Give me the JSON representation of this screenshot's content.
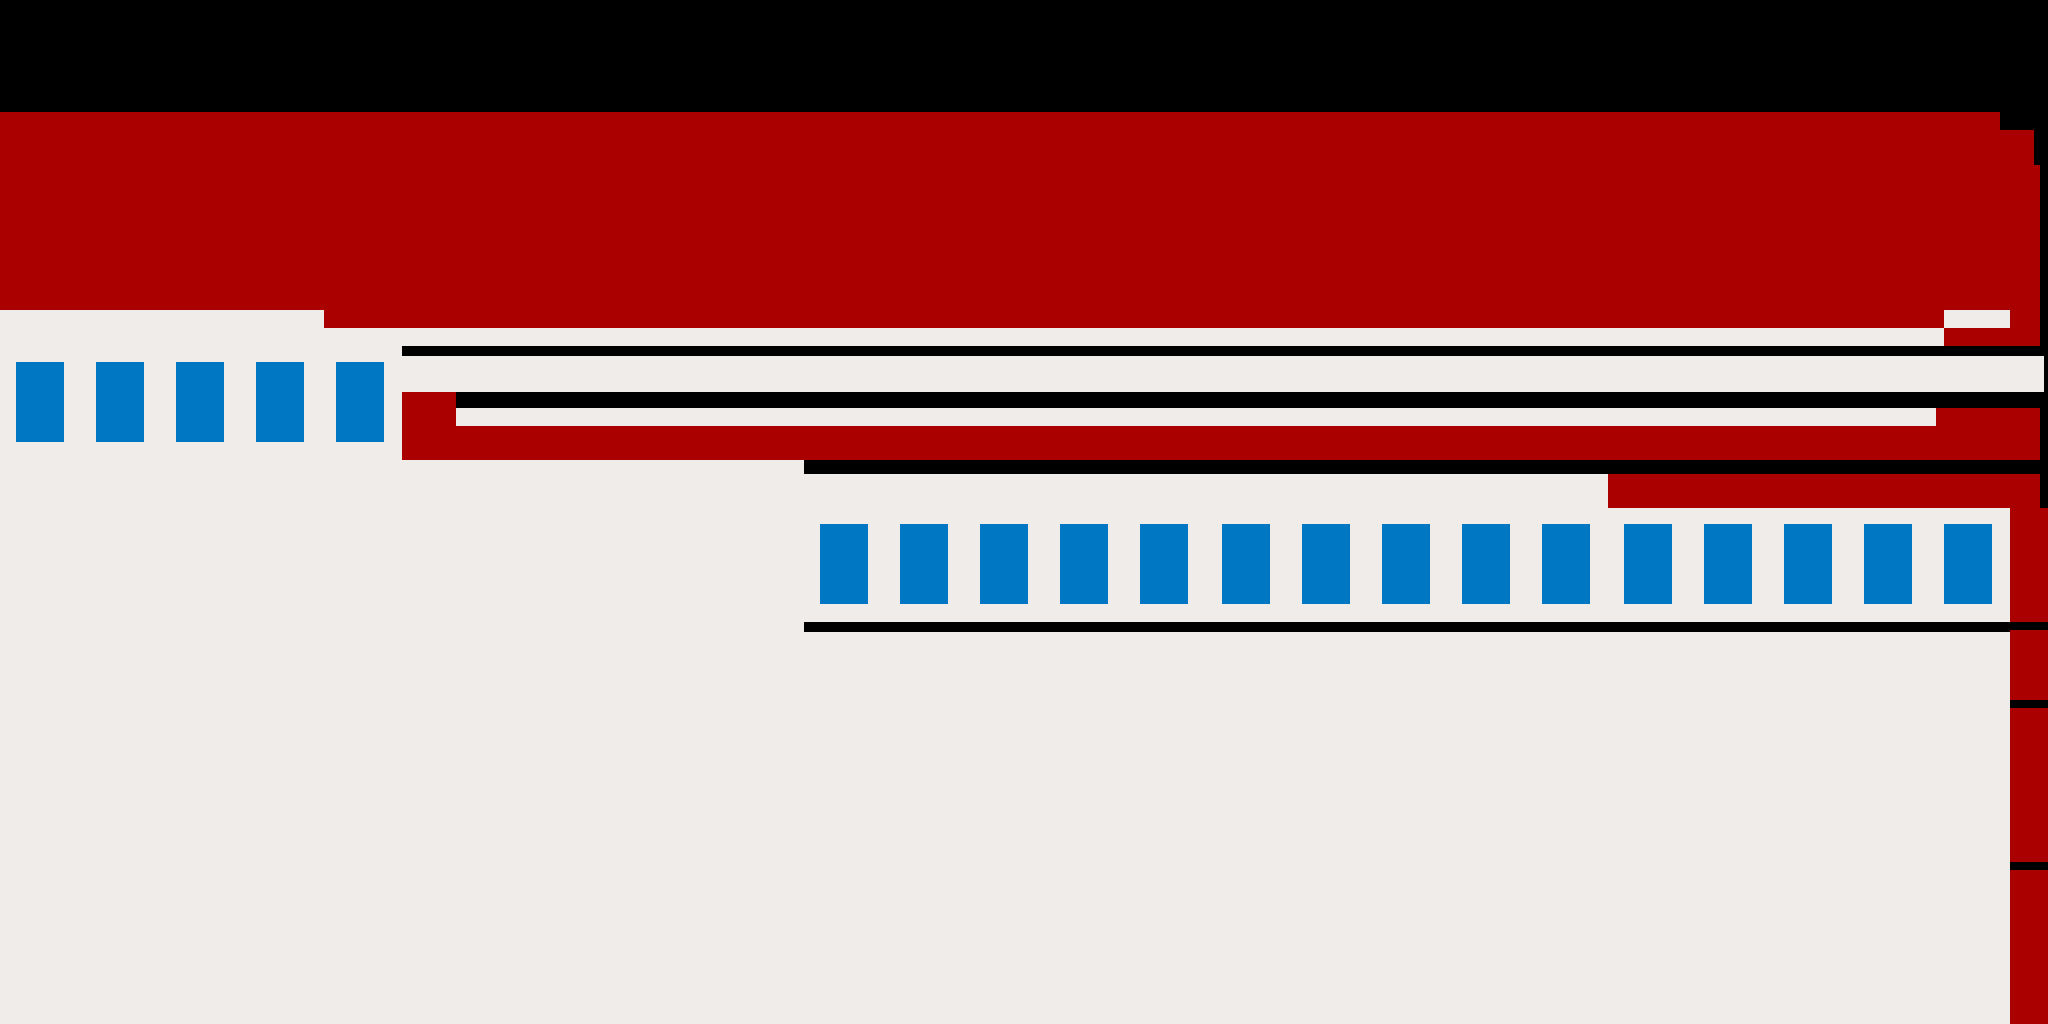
{
  "colors": {
    "background": "#000000",
    "red": "#aa0000",
    "light": "#f0ece9",
    "black": "#000000",
    "blue": "#0077c2"
  },
  "icons": {
    "small_row": "blue-rect-icon",
    "large_row": "blue-rect-icon"
  }
}
